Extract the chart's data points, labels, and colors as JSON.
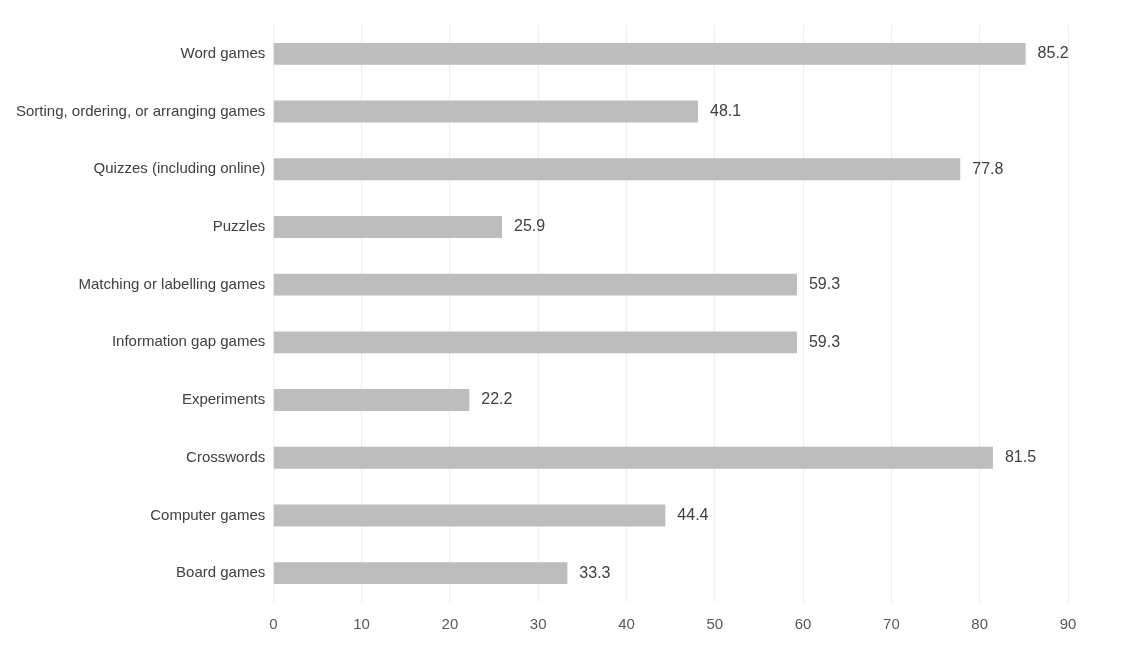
{
  "chart_data": {
    "type": "bar",
    "orientation": "horizontal",
    "categories": [
      "Word games",
      "Sorting, ordering, or arranging games",
      "Quizzes (including online)",
      "Puzzles",
      "Matching or labelling games",
      "Information gap games",
      "Experiments",
      "Crosswords",
      "Computer games",
      "Board games"
    ],
    "values": [
      85.2,
      48.1,
      77.8,
      25.9,
      59.3,
      59.3,
      22.2,
      81.5,
      44.4,
      33.3
    ],
    "color": "#bdbdbd",
    "xlim": [
      0,
      90
    ],
    "xticks": [
      0,
      10,
      20,
      30,
      40,
      50,
      60,
      70,
      80,
      90
    ],
    "grid": "x",
    "data_labels": true,
    "legend": false
  }
}
